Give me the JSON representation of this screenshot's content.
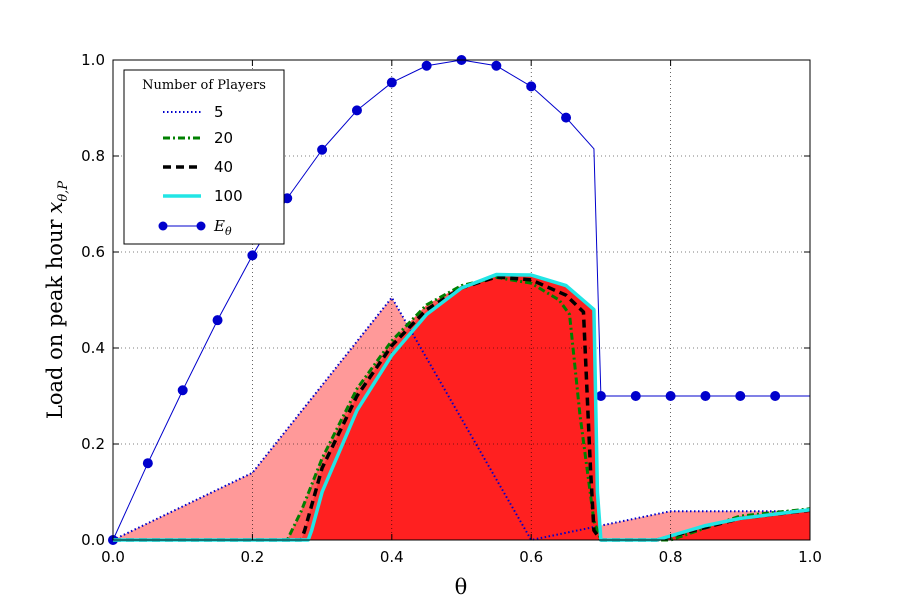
{
  "chart_data": {
    "type": "line",
    "xlabel": "θ",
    "ylabel": "Load on peak hour",
    "ylabel_math": "x",
    "ylabel_sub": "θ,P",
    "xlim": [
      0,
      1
    ],
    "ylim": [
      0,
      1
    ],
    "grid": true,
    "legend_placement": "top-left",
    "xticks": [
      "0.0",
      "0.2",
      "0.4",
      "0.6",
      "0.8",
      "1.0"
    ],
    "yticks": [
      "0.0",
      "0.2",
      "0.4",
      "0.6",
      "0.8",
      "1.0"
    ],
    "legend": {
      "title": "Number of Players",
      "entries": [
        "5",
        "20",
        "40",
        "100",
        "E"
      ],
      "e_sub": "θ"
    },
    "series": [
      {
        "name": "5",
        "style": "dotted",
        "color": "#0000cc",
        "fill": "#ff9999",
        "x": [
          0.0,
          0.2,
          0.4,
          0.6,
          0.8,
          1.0
        ],
        "y": [
          0.0,
          0.14,
          0.505,
          0.0,
          0.06,
          0.06
        ]
      },
      {
        "name": "20",
        "style": "dashdot",
        "color": "#008000",
        "fill": "#ff5a5a",
        "x": [
          0.0,
          0.25,
          0.27,
          0.3,
          0.35,
          0.4,
          0.45,
          0.5,
          0.55,
          0.6,
          0.64,
          0.655,
          0.67,
          0.69,
          0.7,
          0.8,
          0.9,
          1.0
        ],
        "y": [
          0.0,
          0.0,
          0.06,
          0.17,
          0.315,
          0.415,
          0.49,
          0.53,
          0.547,
          0.535,
          0.5,
          0.47,
          0.26,
          0.04,
          0.0,
          0.0,
          0.05,
          0.065
        ]
      },
      {
        "name": "40",
        "style": "dashed",
        "color": "#000000",
        "fill": "#ff3838",
        "x": [
          0.0,
          0.27,
          0.275,
          0.3,
          0.35,
          0.4,
          0.45,
          0.5,
          0.55,
          0.6,
          0.65,
          0.675,
          0.685,
          0.69,
          0.7,
          0.78,
          0.9,
          1.0
        ],
        "y": [
          0.0,
          0.0,
          0.02,
          0.15,
          0.3,
          0.405,
          0.48,
          0.525,
          0.548,
          0.542,
          0.51,
          0.475,
          0.15,
          0.02,
          0.0,
          0.0,
          0.045,
          0.062
        ]
      },
      {
        "name": "100",
        "style": "solid",
        "color": "#22e5e5",
        "fill": "#ff2020",
        "x": [
          0.0,
          0.28,
          0.285,
          0.3,
          0.35,
          0.4,
          0.45,
          0.5,
          0.55,
          0.6,
          0.65,
          0.69,
          0.695,
          0.7,
          0.78,
          0.85,
          0.9,
          1.0
        ],
        "y": [
          0.0,
          0.0,
          0.02,
          0.1,
          0.27,
          0.385,
          0.47,
          0.525,
          0.553,
          0.552,
          0.53,
          0.48,
          0.1,
          0.0,
          0.0,
          0.03,
          0.045,
          0.063
        ]
      },
      {
        "name": "E",
        "style": "solid-markers",
        "color": "#0000cc",
        "x": [
          0.0,
          0.05,
          0.1,
          0.15,
          0.2,
          0.25,
          0.3,
          0.35,
          0.4,
          0.45,
          0.5,
          0.55,
          0.6,
          0.65,
          0.69,
          0.7,
          0.75,
          0.8,
          0.85,
          0.9,
          0.95,
          1.0
        ],
        "y": [
          0.0,
          0.16,
          0.312,
          0.458,
          0.593,
          0.712,
          0.813,
          0.895,
          0.953,
          0.988,
          1.0,
          0.988,
          0.945,
          0.88,
          0.815,
          0.3,
          0.3,
          0.3,
          0.3,
          0.3,
          0.3,
          0.3
        ],
        "markers_x": [
          0.0,
          0.05,
          0.1,
          0.15,
          0.2,
          0.25,
          0.3,
          0.35,
          0.4,
          0.45,
          0.5,
          0.55,
          0.6,
          0.65,
          0.7,
          0.75,
          0.8,
          0.85,
          0.9,
          0.95
        ],
        "markers_y": [
          0.0,
          0.16,
          0.312,
          0.458,
          0.593,
          0.712,
          0.813,
          0.895,
          0.953,
          0.988,
          1.0,
          0.988,
          0.945,
          0.88,
          0.3,
          0.3,
          0.3,
          0.3,
          0.3,
          0.3
        ]
      }
    ]
  }
}
